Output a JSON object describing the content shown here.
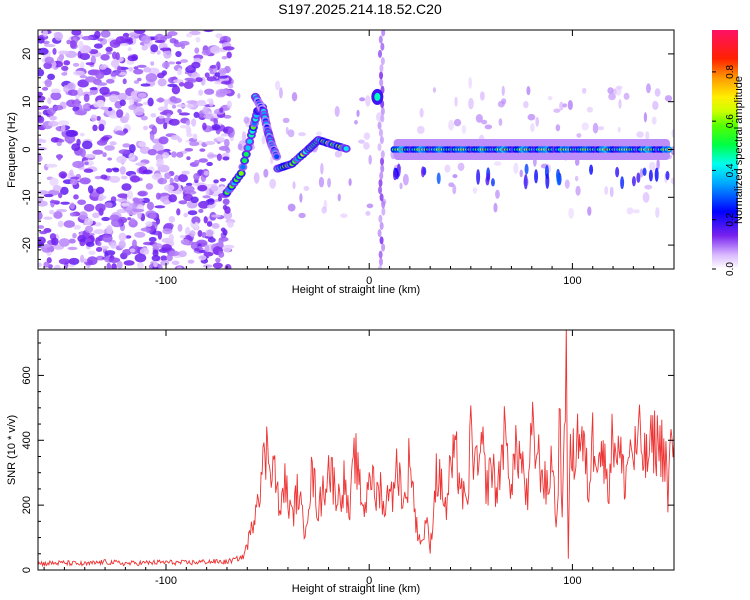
{
  "title": "S197.2025.214.18.52.C20",
  "colors": {
    "line": "#ee3333",
    "axis": "#000000",
    "background": "#ffffff"
  },
  "chart_data": [
    {
      "type": "heatmap",
      "xlabel": "Height of straight line (km)",
      "ylabel": "Frequency (Hz)",
      "xlim": [
        -163,
        150
      ],
      "ylim": [
        -25,
        25
      ],
      "xticks": [
        -100,
        0,
        100
      ],
      "xtick_labels": [
        "-100",
        "0",
        "100"
      ],
      "yticks": [
        -20,
        -10,
        0,
        10,
        20
      ],
      "ytick_labels": [
        "-20",
        "-10",
        "0",
        "10",
        "20"
      ],
      "colorbar": {
        "label": "Normalized spectral amplitude",
        "range": [
          0,
          0.97
        ],
        "ticks": [
          0,
          0.2,
          0.4,
          0.6,
          0.8
        ],
        "tick_labels": [
          "0.0",
          "0.2",
          "0.4",
          "0.6",
          "0.8"
        ],
        "colormap": "rainbow (white-purple-blue-cyan-green-yellow-orange-red-magenta)"
      },
      "features": [
        {
          "name": "noise-field",
          "x_range": [
            -163,
            -70
          ],
          "y_range": [
            -25,
            25
          ],
          "amplitude": 0.08
        },
        {
          "name": "diagonal-trace",
          "x_range": [
            -70,
            -52
          ],
          "y_range": [
            -9,
            9
          ],
          "amplitude": 0.5
        },
        {
          "name": "hook-trace",
          "x_range": [
            -56,
            -45
          ],
          "y_range": [
            -2,
            11
          ],
          "amplitude": 0.35
        },
        {
          "name": "rising-trace",
          "x_range": [
            -45,
            -10
          ],
          "y_range": [
            -4,
            2
          ],
          "amplitude": 0.55
        },
        {
          "name": "vertical-spike",
          "x_range": [
            5,
            7
          ],
          "y_range": [
            -25,
            25
          ],
          "amplitude": 0.06
        },
        {
          "name": "blob",
          "x": 4,
          "y": 11,
          "amplitude": 0.45
        },
        {
          "name": "steady-band",
          "x_range": [
            12,
            148
          ],
          "y_range": [
            -1,
            1
          ],
          "amplitude": 0.75
        }
      ]
    },
    {
      "type": "line",
      "xlabel": "Height of straight line (km)",
      "ylabel": "SNR (10 * v/v)",
      "xlim": [
        -163,
        150
      ],
      "ylim": [
        0,
        740
      ],
      "xticks": [
        -100,
        0,
        100
      ],
      "xtick_labels": [
        "-100",
        "0",
        "100"
      ],
      "yticks": [
        0,
        200,
        400,
        600
      ],
      "ytick_labels": [
        "0",
        "200",
        "400",
        "600"
      ],
      "grid": false,
      "series": [
        {
          "color": "#ee3333",
          "x": [
            -163,
            -150,
            -140,
            -130,
            -120,
            -110,
            -100,
            -90,
            -80,
            -70,
            -62,
            -58,
            -55,
            -50,
            -46,
            -44,
            -42,
            -40,
            -38,
            -35,
            -32,
            -28,
            -25,
            -20,
            -15,
            -12,
            -10,
            -7,
            -5,
            -2,
            0,
            3,
            6,
            8,
            10,
            12,
            14,
            16,
            18,
            20,
            23,
            26,
            28,
            30,
            33,
            36,
            38,
            40,
            43,
            46,
            48,
            50,
            53,
            56,
            58,
            60,
            63,
            66,
            68,
            70,
            73,
            76,
            78,
            80,
            83,
            86,
            88,
            90,
            92,
            94,
            95,
            96,
            97,
            98,
            99,
            100,
            103,
            106,
            108,
            110,
            113,
            116,
            118,
            120,
            123,
            126,
            128,
            130,
            133,
            136,
            140,
            144,
            146,
            147,
            148,
            150
          ],
          "y": [
            20,
            22,
            18,
            25,
            20,
            22,
            24,
            22,
            26,
            25,
            40,
            120,
            240,
            380,
            300,
            150,
            280,
            220,
            160,
            250,
            120,
            300,
            180,
            320,
            220,
            280,
            150,
            360,
            260,
            180,
            330,
            220,
            260,
            160,
            300,
            220,
            340,
            240,
            200,
            370,
            140,
            80,
            160,
            60,
            300,
            250,
            180,
            320,
            340,
            230,
            180,
            420,
            300,
            360,
            250,
            330,
            230,
            420,
            340,
            280,
            380,
            300,
            200,
            420,
            350,
            280,
            230,
            380,
            120,
            500,
            150,
            350,
            740,
            40,
            380,
            330,
            430,
            350,
            250,
            400,
            390,
            320,
            280,
            420,
            360,
            270,
            380,
            350,
            400,
            330,
            400,
            380,
            350,
            200,
            360,
            390
          ]
        }
      ]
    }
  ]
}
